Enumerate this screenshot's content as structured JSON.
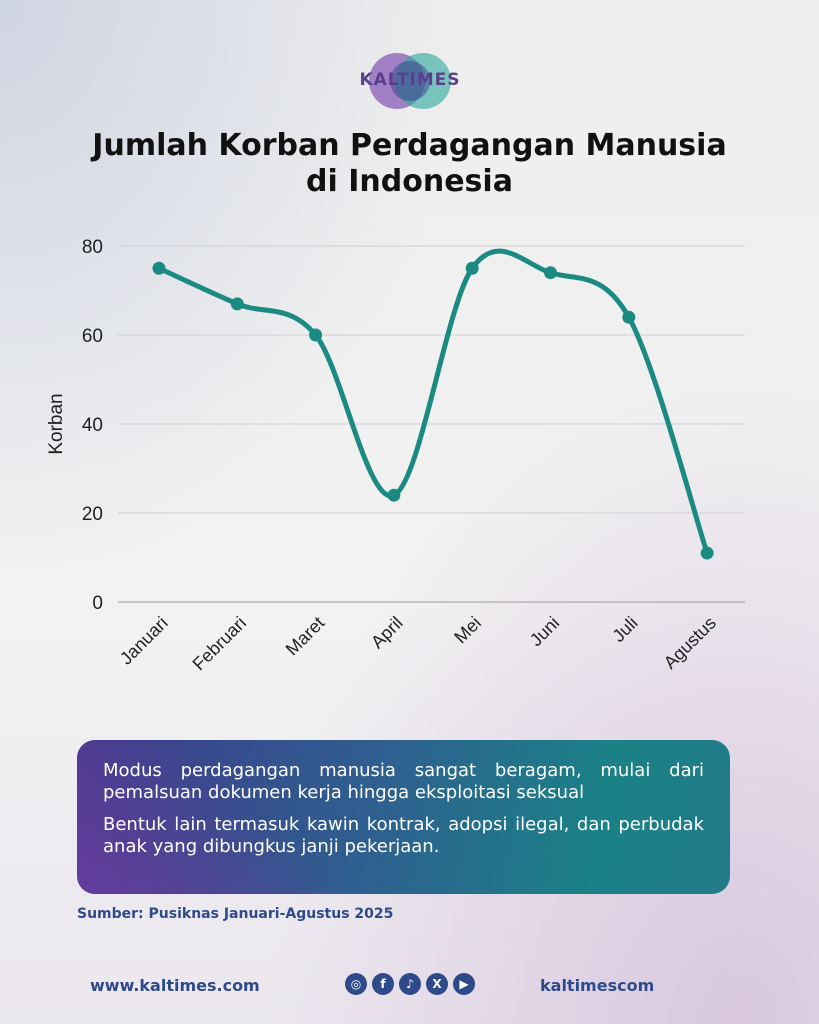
{
  "brand": {
    "logo_text": "KALTIMES"
  },
  "title_line1": "Jumlah Korban Perdagangan Manusia",
  "title_line2": "di Indonesia",
  "chart_data": {
    "type": "line",
    "title": "Jumlah Korban Perdagangan Manusia di Indonesia",
    "xlabel": "",
    "ylabel": "Korban",
    "categories": [
      "Januari",
      "Februari",
      "Maret",
      "April",
      "Mei",
      "Juni",
      "Juli",
      "Agustus"
    ],
    "values": [
      75,
      67,
      60,
      24,
      75,
      74,
      64,
      11
    ],
    "ylim": [
      0,
      80
    ],
    "yticks": [
      "0",
      "20",
      "40",
      "60",
      "80"
    ],
    "grid": true,
    "smooth": true,
    "line_color": "#1a8a82"
  },
  "info": {
    "p1": "Modus perdagangan manusia sangat beragam, mulai dari pemalsuan dokumen kerja hingga eksploitasi seksual",
    "p2": "Bentuk lain termasuk kawin kontrak, adopsi ilegal, dan perbudak anak yang dibungkus janji pekerjaan."
  },
  "source": "Sumber: Pusiknas Januari-Agustus 2025",
  "footer": {
    "website": "www.kaltimes.com",
    "handle": "kaltimescom",
    "socials": [
      {
        "icon": "instagram-icon",
        "glyph": "◎"
      },
      {
        "icon": "facebook-icon",
        "glyph": "f"
      },
      {
        "icon": "tiktok-icon",
        "glyph": "♪"
      },
      {
        "icon": "x-icon",
        "glyph": "X"
      },
      {
        "icon": "youtube-icon",
        "glyph": "▶"
      }
    ]
  }
}
